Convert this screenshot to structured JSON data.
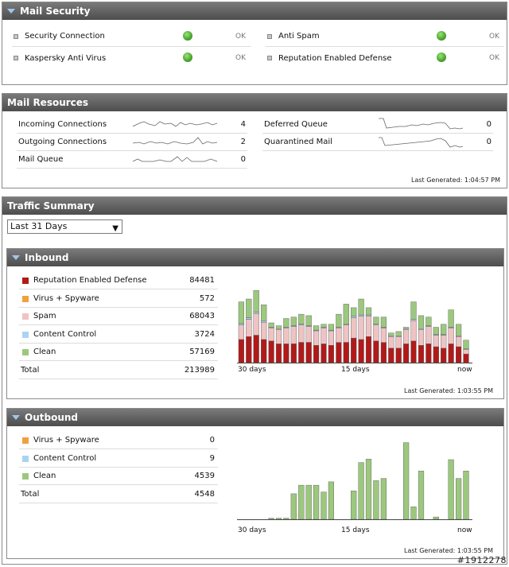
{
  "mail_security": {
    "title": "Mail Security",
    "items": [
      {
        "label": "Security Connection",
        "status": "OK"
      },
      {
        "label": "Kaspersky Anti Virus",
        "status": "OK"
      },
      {
        "label": "Anti Spam",
        "status": "OK"
      },
      {
        "label": "Reputation Enabled Defense",
        "status": "OK"
      }
    ]
  },
  "mail_resources": {
    "title": "Mail Resources",
    "items": [
      {
        "label": "Incoming Connections",
        "value": "4"
      },
      {
        "label": "Outgoing Connections",
        "value": "2"
      },
      {
        "label": "Mail Queue",
        "value": "0"
      },
      {
        "label": "Deferred Queue",
        "value": "0"
      },
      {
        "label": "Quarantined Mail",
        "value": "0"
      }
    ],
    "last_generated": "Last Generated: 1:04:57 PM"
  },
  "traffic_summary": {
    "title": "Traffic Summary",
    "range_selected": "Last 31 Days",
    "x_ticks": [
      "30 days",
      "15 days",
      "now"
    ],
    "colors": {
      "reputation": "#b01a1a",
      "virus": "#f0a040",
      "spam": "#efc3c3",
      "content": "#a8d4f0",
      "clean": "#9cc87e"
    },
    "inbound": {
      "title": "Inbound",
      "legend": [
        {
          "label": "Reputation Enabled Defense",
          "value": "84481",
          "color": "#b01a1a"
        },
        {
          "label": "Virus + Spyware",
          "value": "572",
          "color": "#f0a040"
        },
        {
          "label": "Spam",
          "value": "68043",
          "color": "#efc3c3"
        },
        {
          "label": "Content Control",
          "value": "3724",
          "color": "#a8d4f0"
        },
        {
          "label": "Clean",
          "value": "57169",
          "color": "#9cc87e"
        }
      ],
      "total_label": "Total",
      "total_value": "213989",
      "last_generated": "Last Generated: 1:03:55 PM"
    },
    "outbound": {
      "title": "Outbound",
      "legend": [
        {
          "label": "Virus + Spyware",
          "value": "0",
          "color": "#f0a040"
        },
        {
          "label": "Content Control",
          "value": "9",
          "color": "#a8d4f0"
        },
        {
          "label": "Clean",
          "value": "4539",
          "color": "#9cc87e"
        }
      ],
      "total_label": "Total",
      "total_value": "4548",
      "last_generated": "Last Generated: 1:03:55 PM"
    }
  },
  "chart_data": [
    {
      "type": "bar",
      "stacked": true,
      "x": [
        "30 days",
        "",
        "",
        "",
        "",
        "",
        "",
        "",
        "",
        "",
        "",
        "",
        "",
        "",
        "",
        "15 days",
        "",
        "",
        "",
        "",
        "",
        "",
        "",
        "",
        "",
        "",
        "",
        "",
        "",
        "",
        "now"
      ],
      "series": [
        {
          "name": "Reputation Enabled Defense",
          "values": [
            32,
            36,
            38,
            32,
            30,
            26,
            26,
            26,
            28,
            28,
            24,
            26,
            24,
            28,
            28,
            34,
            32,
            36,
            30,
            28,
            20,
            20,
            26,
            30,
            24,
            26,
            22,
            20,
            26,
            22,
            12
          ]
        },
        {
          "name": "Spam",
          "values": [
            20,
            24,
            30,
            24,
            18,
            20,
            22,
            24,
            24,
            22,
            20,
            22,
            20,
            20,
            24,
            28,
            32,
            28,
            22,
            20,
            16,
            16,
            20,
            28,
            22,
            24,
            16,
            18,
            22,
            14,
            6
          ]
        },
        {
          "name": "Content Control",
          "values": [
            2,
            2,
            2,
            2,
            1,
            1,
            1,
            1,
            1,
            1,
            1,
            1,
            1,
            1,
            1,
            2,
            2,
            2,
            1,
            1,
            1,
            1,
            1,
            2,
            1,
            1,
            1,
            1,
            1,
            1,
            1
          ]
        },
        {
          "name": "Clean",
          "values": [
            30,
            26,
            30,
            22,
            6,
            4,
            12,
            12,
            14,
            14,
            6,
            4,
            8,
            18,
            28,
            12,
            22,
            10,
            10,
            14,
            4,
            6,
            2,
            24,
            18,
            12,
            10,
            14,
            24,
            16,
            12
          ]
        }
      ]
    },
    {
      "type": "bar",
      "x": [
        "30 days",
        "",
        "",
        "",
        "",
        "",
        "",
        "",
        "",
        "",
        "",
        "",
        "",
        "",
        "",
        "15 days",
        "",
        "",
        "",
        "",
        "",
        "",
        "",
        "",
        "",
        "",
        "",
        "",
        "",
        "",
        "now"
      ],
      "series": [
        {
          "name": "Clean",
          "values": [
            0,
            0,
            0,
            0,
            2,
            2,
            2,
            45,
            60,
            60,
            60,
            48,
            66,
            0,
            0,
            50,
            100,
            106,
            68,
            72,
            0,
            0,
            135,
            22,
            85,
            0,
            4,
            0,
            105,
            72,
            85
          ]
        }
      ]
    }
  ]
}
